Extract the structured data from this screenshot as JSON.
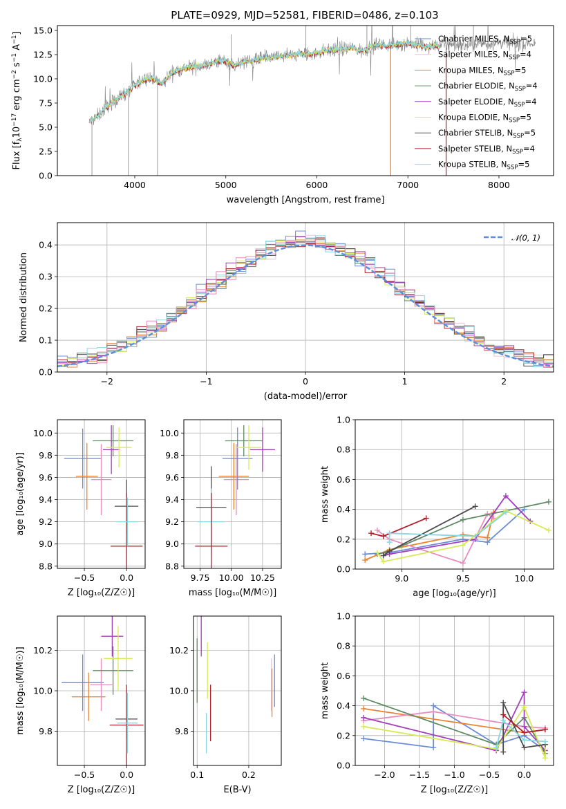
{
  "colors": {
    "chabrier_miles": "#6a8cd6",
    "salpeter_miles": "#e5c5d5",
    "kroupa_miles": "#ea8230",
    "chabrier_elodie": "#5e8a63",
    "salpeter_elodie": "#a33fbd",
    "kroupa_elodie": "#d7ea55",
    "chabrier_stelib": "#4b4b4b",
    "salpeter_stelib": "#b21f2a",
    "kroupa_stelib": "#85d7e0",
    "pink": "#e88cbd",
    "gaussian": "#5d8fda",
    "grid": "#b0b0b0"
  },
  "chart_data": [
    {
      "id": "spectrum",
      "type": "line",
      "title": "PLATE=0929, MJD=52581, FIBERID=0486, z=0.103",
      "xlabel": "wavelength [Angstrom, rest frame]",
      "ylabel_parts": [
        "Flux [f",
        "λ",
        "10",
        "−17",
        " erg cm",
        "−2",
        " s",
        "−1",
        " A",
        "−1",
        "]"
      ],
      "xlim": [
        3150,
        8600
      ],
      "ylim": [
        0,
        15.5
      ],
      "xticks": [
        "4000",
        "5000",
        "6000",
        "7000",
        "8000"
      ],
      "xtick_values": [
        4000,
        5000,
        6000,
        7000,
        8000
      ],
      "yticks": [
        "0.0",
        "2.5",
        "5.0",
        "7.5",
        "10.0",
        "12.5",
        "15.0"
      ],
      "ytick_values": [
        0,
        2.5,
        5,
        7.5,
        10,
        12.5,
        15
      ],
      "grid": false,
      "legend_position": "top-right",
      "legend": [
        {
          "label": "Chabrier MILES, N",
          "sub": "SSP",
          "tail": "=5",
          "color_key": "chabrier_miles"
        },
        {
          "label": "Salpeter MILES, N",
          "sub": "SSP",
          "tail": "=4",
          "color_key": "salpeter_miles"
        },
        {
          "label": "Kroupa MILES, N",
          "sub": "SSP",
          "tail": "=5",
          "color_key": "kroupa_miles"
        },
        {
          "label": "Chabrier ELODIE, N",
          "sub": "SSP",
          "tail": "=4",
          "color_key": "chabrier_elodie"
        },
        {
          "label": "Salpeter ELODIE, N",
          "sub": "SSP",
          "tail": "=4",
          "color_key": "salpeter_elodie"
        },
        {
          "label": "Kroupa ELODIE, N",
          "sub": "SSP",
          "tail": "=5",
          "color_key": "kroupa_elodie"
        },
        {
          "label": "Chabrier STELIB, N",
          "sub": "SSP",
          "tail": "=5",
          "color_key": "chabrier_stelib"
        },
        {
          "label": "Salpeter STELIB, N",
          "sub": "SSP",
          "tail": "=4",
          "color_key": "salpeter_stelib"
        },
        {
          "label": "Kroupa STELIB, N",
          "sub": "SSP",
          "tail": "=5",
          "color_key": "kroupa_stelib"
        }
      ],
      "continuum": {
        "x": [
          3500,
          3600,
          3700,
          3800,
          3900,
          4000,
          4100,
          4200,
          4300,
          4400,
          4500,
          4600,
          4700,
          4800,
          4900,
          5000,
          5100,
          5200,
          5300,
          5400,
          5500,
          5600,
          5700,
          5800,
          5900,
          6000,
          6100,
          6200,
          6300,
          6400,
          6500,
          6600,
          6700,
          6800,
          6900,
          7000,
          7100,
          7200,
          7300,
          7400,
          7500,
          7600,
          7700,
          7800,
          7900,
          8000,
          8100,
          8200,
          8300,
          8400
        ],
        "y": [
          5.5,
          6.2,
          7.2,
          7.9,
          8.5,
          9.3,
          10.0,
          10.1,
          9.4,
          10.6,
          11.0,
          11.2,
          11.3,
          11.5,
          11.8,
          11.9,
          11.4,
          11.7,
          11.9,
          12.1,
          12.2,
          12.3,
          12.4,
          12.6,
          12.5,
          12.7,
          12.9,
          13.0,
          13.1,
          13.2,
          12.8,
          13.4,
          13.5,
          13.4,
          13.6,
          13.7,
          13.5,
          13.3,
          13.4,
          13.5,
          13.6,
          13.4,
          13.5,
          13.7,
          13.6,
          13.8,
          13.7,
          13.6,
          13.7,
          13.6
        ]
      },
      "model_xmax": 7350,
      "data_xmax": 8400,
      "spikes_down": [
        3530,
        3930,
        4250,
        6810,
        7420
      ],
      "spikes_up": [
        5060,
        5880,
        6550,
        6830,
        7030,
        7720
      ]
    },
    {
      "id": "residuals",
      "type": "histogram",
      "xlabel": "(data-model)/error",
      "ylabel": "Normed distribution",
      "xlim": [
        -2.5,
        2.5
      ],
      "ylim": [
        0,
        0.47
      ],
      "xticks": [
        "−2",
        "−1",
        "0",
        "1",
        "2"
      ],
      "xtick_values": [
        -2,
        -1,
        0,
        1,
        2
      ],
      "yticks": [
        "0.0",
        "0.1",
        "0.2",
        "0.3",
        "0.4"
      ],
      "ytick_values": [
        0,
        0.1,
        0.2,
        0.3,
        0.4
      ],
      "grid": true,
      "bins": 50,
      "legend_position": "top-right",
      "legend": [
        {
          "label": "𝒩(0, 1)",
          "color_key": "gaussian"
        }
      ],
      "gaussian": {
        "mean": 0,
        "sigma": 1
      }
    },
    {
      "id": "z-age",
      "type": "errorbar",
      "xlabel": "Z [log₁₀(Z/Z☉)]",
      "ylabel": "age  [log₁₀(age/yr)]",
      "xlim": [
        -0.82,
        0.22
      ],
      "ylim": [
        8.78,
        10.12
      ],
      "xticks": [
        "−0.5",
        "0.0"
      ],
      "xtick_values": [
        -0.5,
        0.0
      ],
      "yticks": [
        "8.8",
        "9.0",
        "9.2",
        "9.4",
        "9.6",
        "9.8",
        "10.0"
      ],
      "ytick_values": [
        8.8,
        9.0,
        9.2,
        9.4,
        9.6,
        9.8,
        10.0
      ],
      "grid": true,
      "points": [
        {
          "x": -0.52,
          "y": 9.77,
          "xerr": 0.22,
          "yerr": 0.27,
          "color_key": "chabrier_miles"
        },
        {
          "x": -0.47,
          "y": 9.61,
          "xerr": 0.13,
          "yerr": 0.3,
          "color_key": "kroupa_miles"
        },
        {
          "x": -0.3,
          "y": 9.58,
          "xerr": 0.12,
          "yerr": 0.32,
          "color_key": "pink"
        },
        {
          "x": -0.16,
          "y": 9.93,
          "xerr": 0.24,
          "yerr": 0.14,
          "color_key": "chabrier_elodie"
        },
        {
          "x": -0.18,
          "y": 9.85,
          "xerr": 0.1,
          "yerr": 0.22,
          "color_key": "salpeter_elodie"
        },
        {
          "x": -0.09,
          "y": 9.87,
          "xerr": 0.15,
          "yerr": 0.18,
          "color_key": "kroupa_elodie"
        },
        {
          "x": 0.0,
          "y": 9.34,
          "xerr": 0.14,
          "yerr": 0.24,
          "color_key": "chabrier_stelib"
        },
        {
          "x": 0.0,
          "y": 8.98,
          "xerr": 0.19,
          "yerr": 0.48,
          "color_key": "salpeter_stelib"
        },
        {
          "x": 0.01,
          "y": 9.2,
          "xerr": 0.13,
          "yerr": 0.22,
          "color_key": "kroupa_stelib"
        }
      ]
    },
    {
      "id": "mass-age",
      "type": "errorbar",
      "xlabel": "mass [log₁₀(M/M☉)]",
      "ylabel": "",
      "xlim": [
        9.62,
        10.4
      ],
      "ylim": [
        8.78,
        10.12
      ],
      "xticks": [
        "9.75",
        "10.00",
        "10.25"
      ],
      "xtick_values": [
        9.75,
        10.0,
        10.25
      ],
      "yticks": [
        "8.8",
        "9.0",
        "9.2",
        "9.4",
        "9.6",
        "9.8",
        "10.0"
      ],
      "ytick_values": [
        8.8,
        9.0,
        9.2,
        9.4,
        9.6,
        9.8,
        10.0
      ],
      "grid": true,
      "points": [
        {
          "x": 9.84,
          "y": 9.33,
          "xerr": 0.12,
          "yerr": 0.37,
          "color_key": "chabrier_stelib"
        },
        {
          "x": 9.84,
          "y": 9.2,
          "xerr": 0.11,
          "yerr": 0.3,
          "color_key": "kroupa_stelib"
        },
        {
          "x": 9.84,
          "y": 8.98,
          "xerr": 0.13,
          "yerr": 0.48,
          "color_key": "salpeter_stelib"
        },
        {
          "x": 10.02,
          "y": 9.61,
          "xerr": 0.12,
          "yerr": 0.3,
          "color_key": "kroupa_miles"
        },
        {
          "x": 10.04,
          "y": 9.58,
          "xerr": 0.1,
          "yerr": 0.32,
          "color_key": "pink"
        },
        {
          "x": 10.05,
          "y": 9.77,
          "xerr": 0.12,
          "yerr": 0.28,
          "color_key": "chabrier_miles"
        },
        {
          "x": 10.1,
          "y": 9.93,
          "xerr": 0.15,
          "yerr": 0.14,
          "color_key": "chabrier_elodie"
        },
        {
          "x": 10.14,
          "y": 9.87,
          "xerr": 0.1,
          "yerr": 0.2,
          "color_key": "kroupa_elodie"
        },
        {
          "x": 10.25,
          "y": 9.85,
          "xerr": 0.1,
          "yerr": 0.2,
          "color_key": "salpeter_elodie"
        }
      ]
    },
    {
      "id": "age-weight",
      "type": "line",
      "xlabel": "age  [log₁₀(age/yr)]",
      "ylabel": "mass weight",
      "xlim": [
        8.62,
        10.24
      ],
      "ylim": [
        0,
        1.0
      ],
      "xticks": [
        "9.0",
        "9.5",
        "10.0"
      ],
      "xtick_values": [
        9.0,
        9.5,
        10.0
      ],
      "yticks": [
        "0.0",
        "0.2",
        "0.4",
        "0.6",
        "0.8",
        "1.0"
      ],
      "ytick_values": [
        0,
        0.2,
        0.4,
        0.6,
        0.8,
        1.0
      ],
      "grid": true,
      "series": [
        {
          "color_key": "chabrier_miles",
          "x": [
            8.7,
            8.9,
            9.5,
            9.7,
            10.0
          ],
          "y": [
            0.1,
            0.11,
            0.2,
            0.18,
            0.4
          ]
        },
        {
          "color_key": "kroupa_miles",
          "x": [
            8.7,
            8.9,
            9.5,
            9.7,
            9.75
          ],
          "y": [
            0.06,
            0.13,
            0.23,
            0.21,
            0.38
          ]
        },
        {
          "color_key": "pink",
          "x": [
            8.8,
            8.9,
            9.5,
            9.7,
            9.75
          ],
          "y": [
            0.26,
            0.2,
            0.04,
            0.37,
            0.34
          ]
        },
        {
          "color_key": "chabrier_elodie",
          "x": [
            8.8,
            8.9,
            9.5,
            10.2
          ],
          "y": [
            0.1,
            0.12,
            0.33,
            0.45
          ]
        },
        {
          "color_key": "salpeter_elodie",
          "x": [
            8.85,
            8.9,
            9.6,
            9.85,
            10.05
          ],
          "y": [
            0.09,
            0.1,
            0.2,
            0.49,
            0.32
          ]
        },
        {
          "color_key": "kroupa_elodie",
          "x": [
            8.8,
            8.85,
            9.5,
            9.85,
            10.2
          ],
          "y": [
            0.11,
            0.05,
            0.16,
            0.39,
            0.26
          ]
        },
        {
          "color_key": "chabrier_stelib",
          "x": [
            8.85,
            8.9,
            9.6
          ],
          "y": [
            0.09,
            0.12,
            0.42
          ]
        },
        {
          "color_key": "salpeter_stelib",
          "x": [
            8.75,
            8.85,
            9.2
          ],
          "y": [
            0.24,
            0.22,
            0.34
          ]
        },
        {
          "color_key": "kroupa_stelib",
          "x": [
            8.9,
            8.9,
            9.6,
            9.85
          ],
          "y": [
            0.18,
            0.24,
            0.22,
            0.38
          ]
        }
      ]
    },
    {
      "id": "z-mass",
      "type": "errorbar",
      "xlabel": "Z [log₁₀(Z/Z☉)]",
      "ylabel": "mass [log₁₀(M/M☉)]",
      "xlim": [
        -0.82,
        0.22
      ],
      "ylim": [
        9.63,
        10.37
      ],
      "xticks": [
        "−0.5",
        "0.0"
      ],
      "xtick_values": [
        -0.5,
        0.0
      ],
      "yticks": [
        "9.8",
        "10.0",
        "10.2"
      ],
      "ytick_values": [
        9.8,
        10.0,
        10.2
      ],
      "grid": true,
      "points": [
        {
          "x": -0.52,
          "y": 10.04,
          "xerr": 0.25,
          "yerr": 0.14,
          "color_key": "chabrier_miles"
        },
        {
          "x": -0.45,
          "y": 9.97,
          "xerr": 0.2,
          "yerr": 0.12,
          "color_key": "kroupa_miles"
        },
        {
          "x": -0.3,
          "y": 10.03,
          "xerr": 0.13,
          "yerr": 0.13,
          "color_key": "pink"
        },
        {
          "x": -0.16,
          "y": 10.1,
          "xerr": 0.24,
          "yerr": 0.12,
          "color_key": "chabrier_elodie"
        },
        {
          "x": -0.17,
          "y": 10.27,
          "xerr": 0.13,
          "yerr": 0.1,
          "color_key": "salpeter_elodie"
        },
        {
          "x": -0.1,
          "y": 10.16,
          "xerr": 0.17,
          "yerr": 0.16,
          "color_key": "kroupa_elodie"
        },
        {
          "x": 0.0,
          "y": 9.86,
          "xerr": 0.13,
          "yerr": 0.1,
          "color_key": "chabrier_stelib"
        },
        {
          "x": 0.0,
          "y": 9.83,
          "xerr": 0.2,
          "yerr": 0.2,
          "color_key": "salpeter_stelib"
        },
        {
          "x": 0.01,
          "y": 9.84,
          "xerr": 0.12,
          "yerr": 0.15,
          "color_key": "kroupa_stelib"
        }
      ]
    },
    {
      "id": "ebv-mass",
      "type": "errorbar",
      "xlabel": "E(B-V)",
      "ylabel": "",
      "xlim": [
        0.093,
        0.263
      ],
      "ylim": [
        9.63,
        10.37
      ],
      "xticks": [
        "0.1",
        "0.2"
      ],
      "xtick_values": [
        0.1,
        0.2
      ],
      "yticks": [
        "9.8",
        "10.0",
        "10.2"
      ],
      "ytick_values": [
        9.8,
        10.0,
        10.2
      ],
      "grid": true,
      "points": [
        {
          "x": 0.1,
          "y": 10.1,
          "xerr": 0.0,
          "yerr": 0.16,
          "color_key": "chabrier_elodie"
        },
        {
          "x": 0.108,
          "y": 10.27,
          "xerr": 0.0,
          "yerr": 0.1,
          "color_key": "salpeter_elodie"
        },
        {
          "x": 0.12,
          "y": 10.1,
          "xerr": 0.0,
          "yerr": 0.14,
          "color_key": "kroupa_elodie"
        },
        {
          "x": 0.118,
          "y": 9.79,
          "xerr": 0.0,
          "yerr": 0.1,
          "color_key": "kroupa_stelib"
        },
        {
          "x": 0.126,
          "y": 9.89,
          "xerr": 0.0,
          "yerr": 0.14,
          "color_key": "salpeter_stelib"
        },
        {
          "x": 0.244,
          "y": 10.03,
          "xerr": 0.0,
          "yerr": 0.13,
          "color_key": "salpeter_miles"
        },
        {
          "x": 0.245,
          "y": 9.99,
          "xerr": 0.0,
          "yerr": 0.12,
          "color_key": "kroupa_miles"
        },
        {
          "x": 0.25,
          "y": 10.05,
          "xerr": 0.0,
          "yerr": 0.13,
          "color_key": "chabrier_miles"
        }
      ]
    },
    {
      "id": "z-weight",
      "type": "line",
      "xlabel": "Z [log₁₀(Z/Z☉)]",
      "ylabel": "mass weight",
      "xlim": [
        -2.42,
        0.42
      ],
      "ylim": [
        0,
        1.0
      ],
      "xticks": [
        "−2.0",
        "−1.5",
        "−1.0",
        "−0.5",
        "0.0"
      ],
      "xtick_values": [
        -2.0,
        -1.5,
        -1.0,
        -0.5,
        0.0
      ],
      "yticks": [
        "0.0",
        "0.2",
        "0.4",
        "0.6",
        "0.8",
        "1.0"
      ],
      "ytick_values": [
        0,
        0.2,
        0.4,
        0.6,
        0.8,
        1.0
      ],
      "grid": true,
      "series": [
        {
          "color_key": "chabrier_miles",
          "x": [
            -2.3,
            -1.3,
            -1.3,
            -0.4,
            0.0,
            0.3
          ],
          "y": [
            0.18,
            0.12,
            0.4,
            0.14,
            0.2,
            0.1
          ]
        },
        {
          "color_key": "kroupa_miles",
          "x": [
            -2.3,
            0.0,
            0.3
          ],
          "y": [
            0.38,
            0.22,
            0.24
          ]
        },
        {
          "color_key": "pink",
          "x": [
            -2.3,
            -1.3,
            0.0,
            0.3
          ],
          "y": [
            0.3,
            0.36,
            0.26,
            0.25
          ]
        },
        {
          "color_key": "chabrier_elodie",
          "x": [
            -2.3,
            -0.4,
            0.0,
            0.3
          ],
          "y": [
            0.45,
            0.14,
            0.32,
            0.08
          ]
        },
        {
          "color_key": "salpeter_elodie",
          "x": [
            -2.3,
            -0.4,
            0.0,
            0.0,
            0.3
          ],
          "y": [
            0.32,
            0.1,
            0.49,
            0.26,
            0.1
          ]
        },
        {
          "color_key": "kroupa_elodie",
          "x": [
            -2.3,
            -0.4,
            0.0,
            0.3,
            0.3
          ],
          "y": [
            0.26,
            0.11,
            0.39,
            0.05,
            0.14
          ]
        },
        {
          "color_key": "chabrier_stelib",
          "x": [
            -0.3,
            -0.3,
            0.0,
            0.3
          ],
          "y": [
            0.09,
            0.42,
            0.12,
            0.14
          ]
        },
        {
          "color_key": "salpeter_stelib",
          "x": [
            -0.3,
            0.0,
            0.3
          ],
          "y": [
            0.34,
            0.22,
            0.24
          ]
        },
        {
          "color_key": "kroupa_stelib",
          "x": [
            -0.4,
            -0.3,
            0.0,
            0.3
          ],
          "y": [
            0.12,
            0.3,
            0.17,
            0.16
          ]
        }
      ]
    }
  ]
}
